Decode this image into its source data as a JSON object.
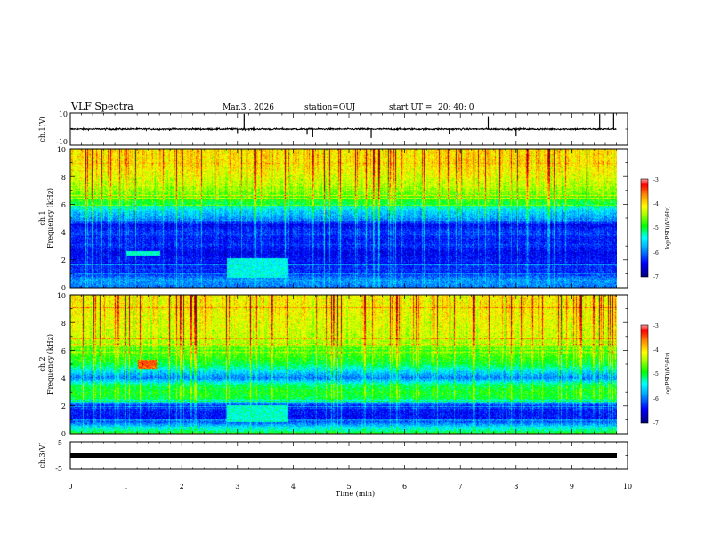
{
  "header": {
    "title": "VLF Spectra",
    "date": "Mar.3 , 2026",
    "station": "station=OUJ",
    "start_label": "start UT = ",
    "start_time": "20: 40: 0"
  },
  "chart_data": [
    {
      "type": "line",
      "name": "ch1-waveform",
      "ylabel": "ch.1(V)",
      "ylim": [
        -10,
        10
      ],
      "ytick_labels": [
        "10",
        "-10"
      ],
      "baseline": 0,
      "noise_amplitude": 0.5,
      "spike_times_min": [
        3.0,
        3.12,
        4.25,
        4.35,
        5.4,
        6.8,
        7.5,
        8.0,
        9.5,
        9.75
      ],
      "spike_values": [
        -2.5,
        9.5,
        -3.5,
        -5,
        -5.5,
        -3,
        8,
        -4.5,
        9.5,
        10
      ],
      "xlim": [
        0,
        10
      ]
    },
    {
      "type": "heatmap",
      "name": "ch1-spectrogram",
      "ylabel_channel": "ch.1",
      "ylabel": "Frequency (kHz)",
      "ylim": [
        0,
        10
      ],
      "ytick_labels": [
        "0",
        "2",
        "4",
        "6",
        "8",
        "10"
      ],
      "xlim": [
        0,
        9.8
      ],
      "colorbar": {
        "label": "log(PSD)(V²/Hz)",
        "range": [
          -7,
          -3
        ],
        "tick_labels": [
          "-3",
          "-4",
          "-5",
          "-6",
          "-7"
        ]
      },
      "mean_log_psd_profile": {
        "freq_khz": [
          0,
          0.5,
          1,
          1.5,
          2,
          2.5,
          3,
          3.5,
          4,
          4.5,
          5,
          5.5,
          6,
          7,
          8,
          9,
          10
        ],
        "log_psd": [
          -6.0,
          -5.8,
          -6.3,
          -6.3,
          -6.4,
          -6.5,
          -6.3,
          -6.4,
          -6.2,
          -6.5,
          -5.8,
          -5.6,
          -5.0,
          -4.5,
          -4.2,
          -4.0,
          -4.0
        ]
      },
      "events": [
        {
          "t_start_min": 2.8,
          "t_end_min": 3.9,
          "f_low_khz": 0.7,
          "f_high_khz": 2.1,
          "log_psd": -5.4
        },
        {
          "t_start_min": 1.0,
          "t_end_min": 1.6,
          "f_low_khz": 2.3,
          "f_high_khz": 2.6,
          "log_psd": -5.3
        }
      ]
    },
    {
      "type": "heatmap",
      "name": "ch2-spectrogram",
      "ylabel_channel": "ch.2",
      "ylabel": "Frequency (kHz)",
      "ylim": [
        0,
        10
      ],
      "ytick_labels": [
        "0",
        "2",
        "4",
        "6",
        "8",
        "10"
      ],
      "xlim": [
        0,
        9.8
      ],
      "colorbar": {
        "label": "log(PSD)(V²/Hz)",
        "range": [
          -7,
          -3
        ],
        "tick_labels": [
          "-3",
          "-4",
          "-5",
          "-6",
          "-7"
        ]
      },
      "mean_log_psd_profile": {
        "freq_khz": [
          0,
          0.5,
          1,
          1.5,
          2,
          2.5,
          3,
          3.5,
          4,
          4.5,
          5,
          5.5,
          6,
          7,
          8,
          9,
          10
        ],
        "log_psd": [
          -5.0,
          -5.6,
          -6.4,
          -6.4,
          -6.3,
          -5.0,
          -4.9,
          -5.1,
          -6.0,
          -5.5,
          -5.0,
          -4.8,
          -4.6,
          -4.3,
          -4.2,
          -4.1,
          -4.1
        ]
      },
      "events": [
        {
          "t_start_min": 1.2,
          "t_end_min": 1.55,
          "f_low_khz": 4.7,
          "f_high_khz": 5.3,
          "log_psd": -3.5
        },
        {
          "t_start_min": 2.8,
          "t_end_min": 3.9,
          "f_low_khz": 0.8,
          "f_high_khz": 2.0,
          "log_psd": -5.3
        }
      ]
    },
    {
      "type": "line",
      "name": "ch3-waveform",
      "ylabel": "ch.3(V)",
      "ylim": [
        -5,
        5
      ],
      "ytick_labels": [
        "5",
        "-5"
      ],
      "baseline": 0,
      "xlim": [
        0,
        10
      ]
    }
  ],
  "x_axis": {
    "label": "Time (min)",
    "ticks": [
      "0",
      "1",
      "2",
      "3",
      "4",
      "5",
      "6",
      "7",
      "8",
      "9",
      "10"
    ],
    "xlim": [
      0,
      10
    ]
  },
  "colormap": [
    "#000080",
    "#0000ff",
    "#00aaff",
    "#00ffff",
    "#00ff00",
    "#aaff00",
    "#ffff00",
    "#ff9900",
    "#ff0000",
    "#800000"
  ]
}
